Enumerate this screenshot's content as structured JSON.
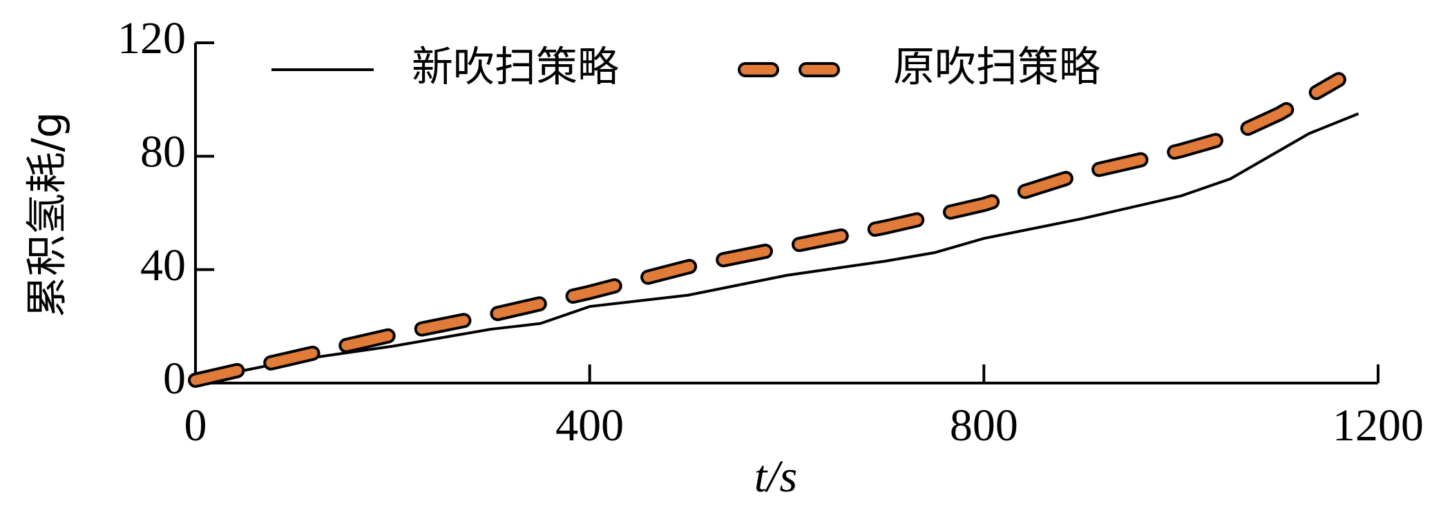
{
  "chart_data": {
    "type": "line",
    "x_label": "t/s",
    "y_label": "累积氢耗/g",
    "xlim": [
      0,
      1200
    ],
    "xticks": [
      0,
      400,
      800,
      1200
    ],
    "ylim": [
      0,
      120
    ],
    "yticks": [
      0,
      40,
      80,
      120
    ],
    "legend": "top",
    "series": [
      {
        "name": "新吹扫策略",
        "color": "#000000",
        "style": "solid",
        "x": [
          0,
          100,
          200,
          300,
          350,
          400,
          500,
          600,
          700,
          750,
          800,
          900,
          1000,
          1050,
          1100,
          1130,
          1180
        ],
        "values": [
          1,
          8,
          13,
          19,
          21,
          27,
          31,
          38,
          43,
          46,
          51,
          58,
          66,
          72,
          82,
          88,
          95
        ]
      },
      {
        "name": "原吹扫策略",
        "color": "#e07b39",
        "style": "dashed",
        "x": [
          0,
          100,
          200,
          300,
          400,
          500,
          600,
          700,
          800,
          900,
          1000,
          1050,
          1100,
          1160
        ],
        "values": [
          1,
          9,
          17,
          24,
          32,
          41,
          48,
          55,
          63,
          74,
          82,
          87,
          95,
          107
        ]
      }
    ]
  }
}
